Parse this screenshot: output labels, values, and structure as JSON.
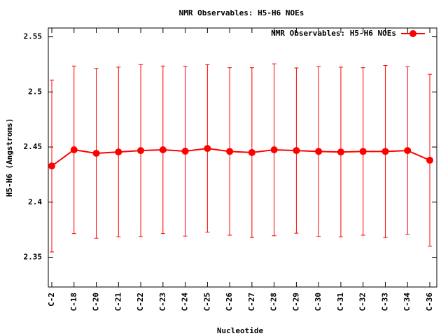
{
  "chart_data": {
    "type": "line",
    "title": "NMR Observables: H5-H6 NOEs",
    "x_label": "Nucleotide",
    "y_label": "H5-H6 (Angstroms)",
    "categories": [
      "C-2",
      "C-18",
      "C-20",
      "C-21",
      "C-22",
      "C-23",
      "C-24",
      "C-25",
      "C-26",
      "C-27",
      "C-28",
      "C-29",
      "C-30",
      "C-31",
      "C-32",
      "C-33",
      "C-34",
      "C-36"
    ],
    "series": [
      {
        "name": "NMR Observables: H5-H6 NOEs",
        "color": "#ff0000",
        "values": [
          2.4328,
          2.4475,
          2.4443,
          2.4455,
          2.4468,
          2.4475,
          2.4462,
          2.4487,
          2.446,
          2.445,
          2.4475,
          2.4468,
          2.446,
          2.4455,
          2.446,
          2.446,
          2.4468,
          2.438
        ],
        "errors": [
          0.078,
          0.076,
          0.077,
          0.077,
          0.078,
          0.076,
          0.077,
          0.076,
          0.076,
          0.077,
          0.078,
          0.075,
          0.077,
          0.077,
          0.076,
          0.078,
          0.076,
          0.078
        ]
      }
    ],
    "ylim": [
      2.323,
      2.558
    ],
    "yticks": [
      2.35,
      2.4,
      2.45,
      2.5,
      2.55
    ],
    "legend": "top-right"
  }
}
